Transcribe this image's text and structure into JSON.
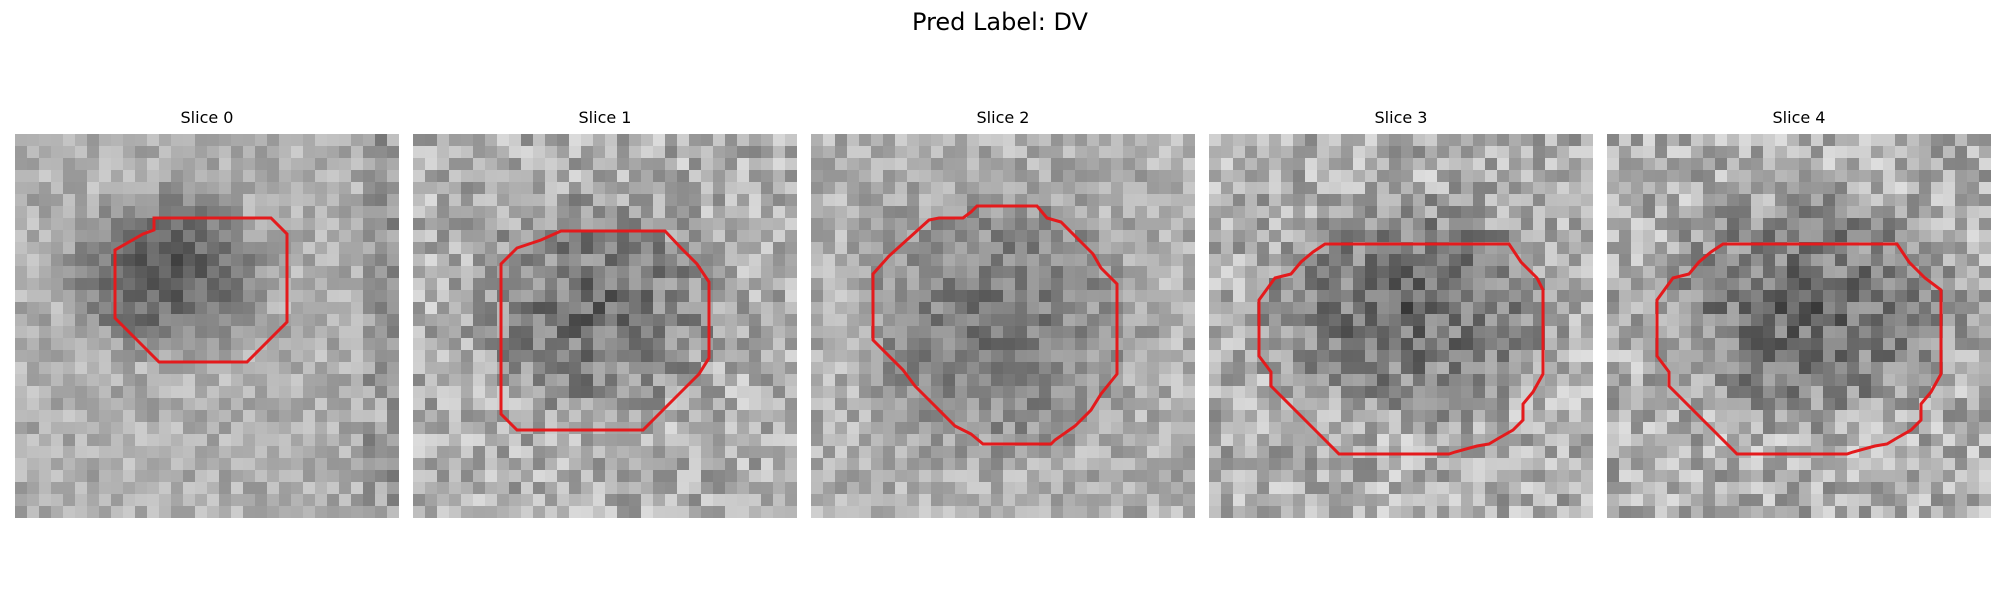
{
  "figure": {
    "suptitle": "Pred Label: DV"
  },
  "panels": [
    {
      "title": "Slice 0",
      "contour_color": "#e41a1c"
    },
    {
      "title": "Slice 1",
      "contour_color": "#e41a1c"
    },
    {
      "title": "Slice 2",
      "contour_color": "#e41a1c"
    },
    {
      "title": "Slice 3",
      "contour_color": "#e41a1c"
    },
    {
      "title": "Slice 4",
      "contour_color": "#e41a1c"
    }
  ]
}
